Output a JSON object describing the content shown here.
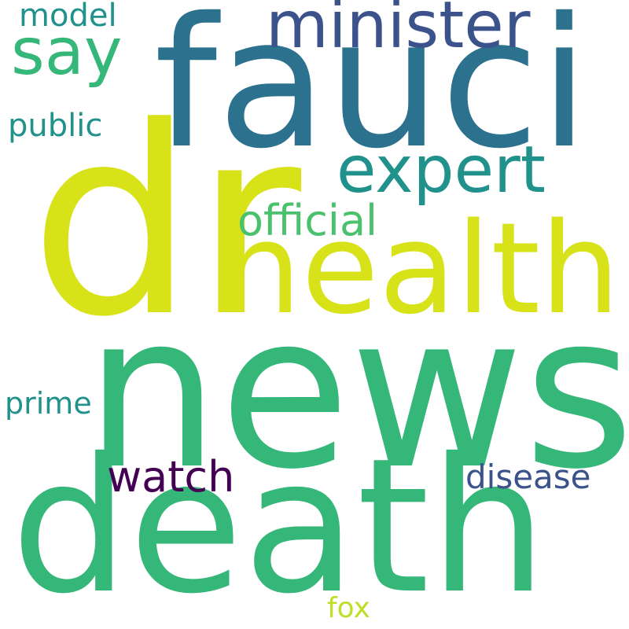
{
  "words": [
    {
      "key": "dr",
      "text": "dr",
      "color": "#d8e219"
    },
    {
      "key": "fauci",
      "text": "fauci",
      "color": "#2c728e"
    },
    {
      "key": "news",
      "text": "news",
      "color": "#35b779"
    },
    {
      "key": "death",
      "text": "death",
      "color": "#35b779"
    },
    {
      "key": "health",
      "text": "health",
      "color": "#d8e219"
    },
    {
      "key": "expert",
      "text": "expert",
      "color": "#21918c"
    },
    {
      "key": "minister",
      "text": "minister",
      "color": "#3b528b"
    },
    {
      "key": "say",
      "text": "say",
      "color": "#35b779"
    },
    {
      "key": "official",
      "text": "official",
      "color": "#4ac16d"
    },
    {
      "key": "watch",
      "text": "watch",
      "color": "#440154"
    },
    {
      "key": "disease",
      "text": "disease",
      "color": "#3b528b"
    },
    {
      "key": "public",
      "text": "public",
      "color": "#21918c"
    },
    {
      "key": "model",
      "text": "model",
      "color": "#21918c"
    },
    {
      "key": "prime",
      "text": "prime",
      "color": "#21918c"
    },
    {
      "key": "fox",
      "text": "fox",
      "color": "#bddf26"
    }
  ]
}
